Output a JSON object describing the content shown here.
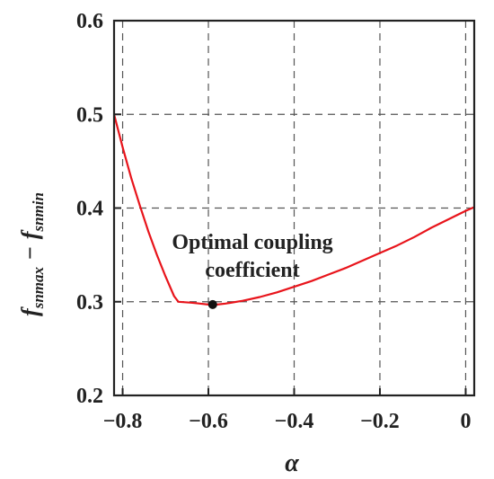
{
  "chart_data": {
    "type": "line",
    "xlabel": "α",
    "ylabel": {
      "base_1": "f",
      "sub_1": "snmax",
      "operator": "−",
      "base_2": "f",
      "sub_2": "snmin"
    },
    "xlim": [
      -0.82,
      0.02
    ],
    "ylim": [
      0.2,
      0.6
    ],
    "xticks": [
      -0.8,
      -0.6,
      -0.4,
      -0.2,
      0
    ],
    "xtick_labels": [
      "−0.8",
      "−0.6",
      "−0.4",
      "−0.2",
      "0"
    ],
    "yticks": [
      0.2,
      0.3,
      0.4,
      0.5,
      0.6
    ],
    "ytick_labels": [
      "0.2",
      "0.3",
      "0.4",
      "0.5",
      "0.6"
    ],
    "grid": true,
    "series": [
      {
        "color": "#e8141b",
        "x": [
          -0.82,
          -0.8,
          -0.78,
          -0.76,
          -0.74,
          -0.72,
          -0.7,
          -0.68,
          -0.67,
          -0.64,
          -0.62,
          -0.6,
          -0.58,
          -0.56,
          -0.52,
          -0.48,
          -0.44,
          -0.4,
          -0.36,
          -0.32,
          -0.28,
          -0.24,
          -0.2,
          -0.16,
          -0.12,
          -0.08,
          -0.04,
          0,
          0.02
        ],
        "y": [
          0.5,
          0.465,
          0.432,
          0.403,
          0.375,
          0.35,
          0.327,
          0.306,
          0.3,
          0.299,
          0.298,
          0.297,
          0.297,
          0.298,
          0.301,
          0.305,
          0.31,
          0.316,
          0.322,
          0.329,
          0.336,
          0.344,
          0.352,
          0.36,
          0.369,
          0.379,
          0.388,
          0.397,
          0.401
        ]
      }
    ],
    "points": [
      {
        "x": -0.59,
        "y": 0.297,
        "color": "#111111"
      }
    ],
    "annotation": {
      "lines": [
        "Optimal coupling",
        "coefficient"
      ]
    }
  }
}
